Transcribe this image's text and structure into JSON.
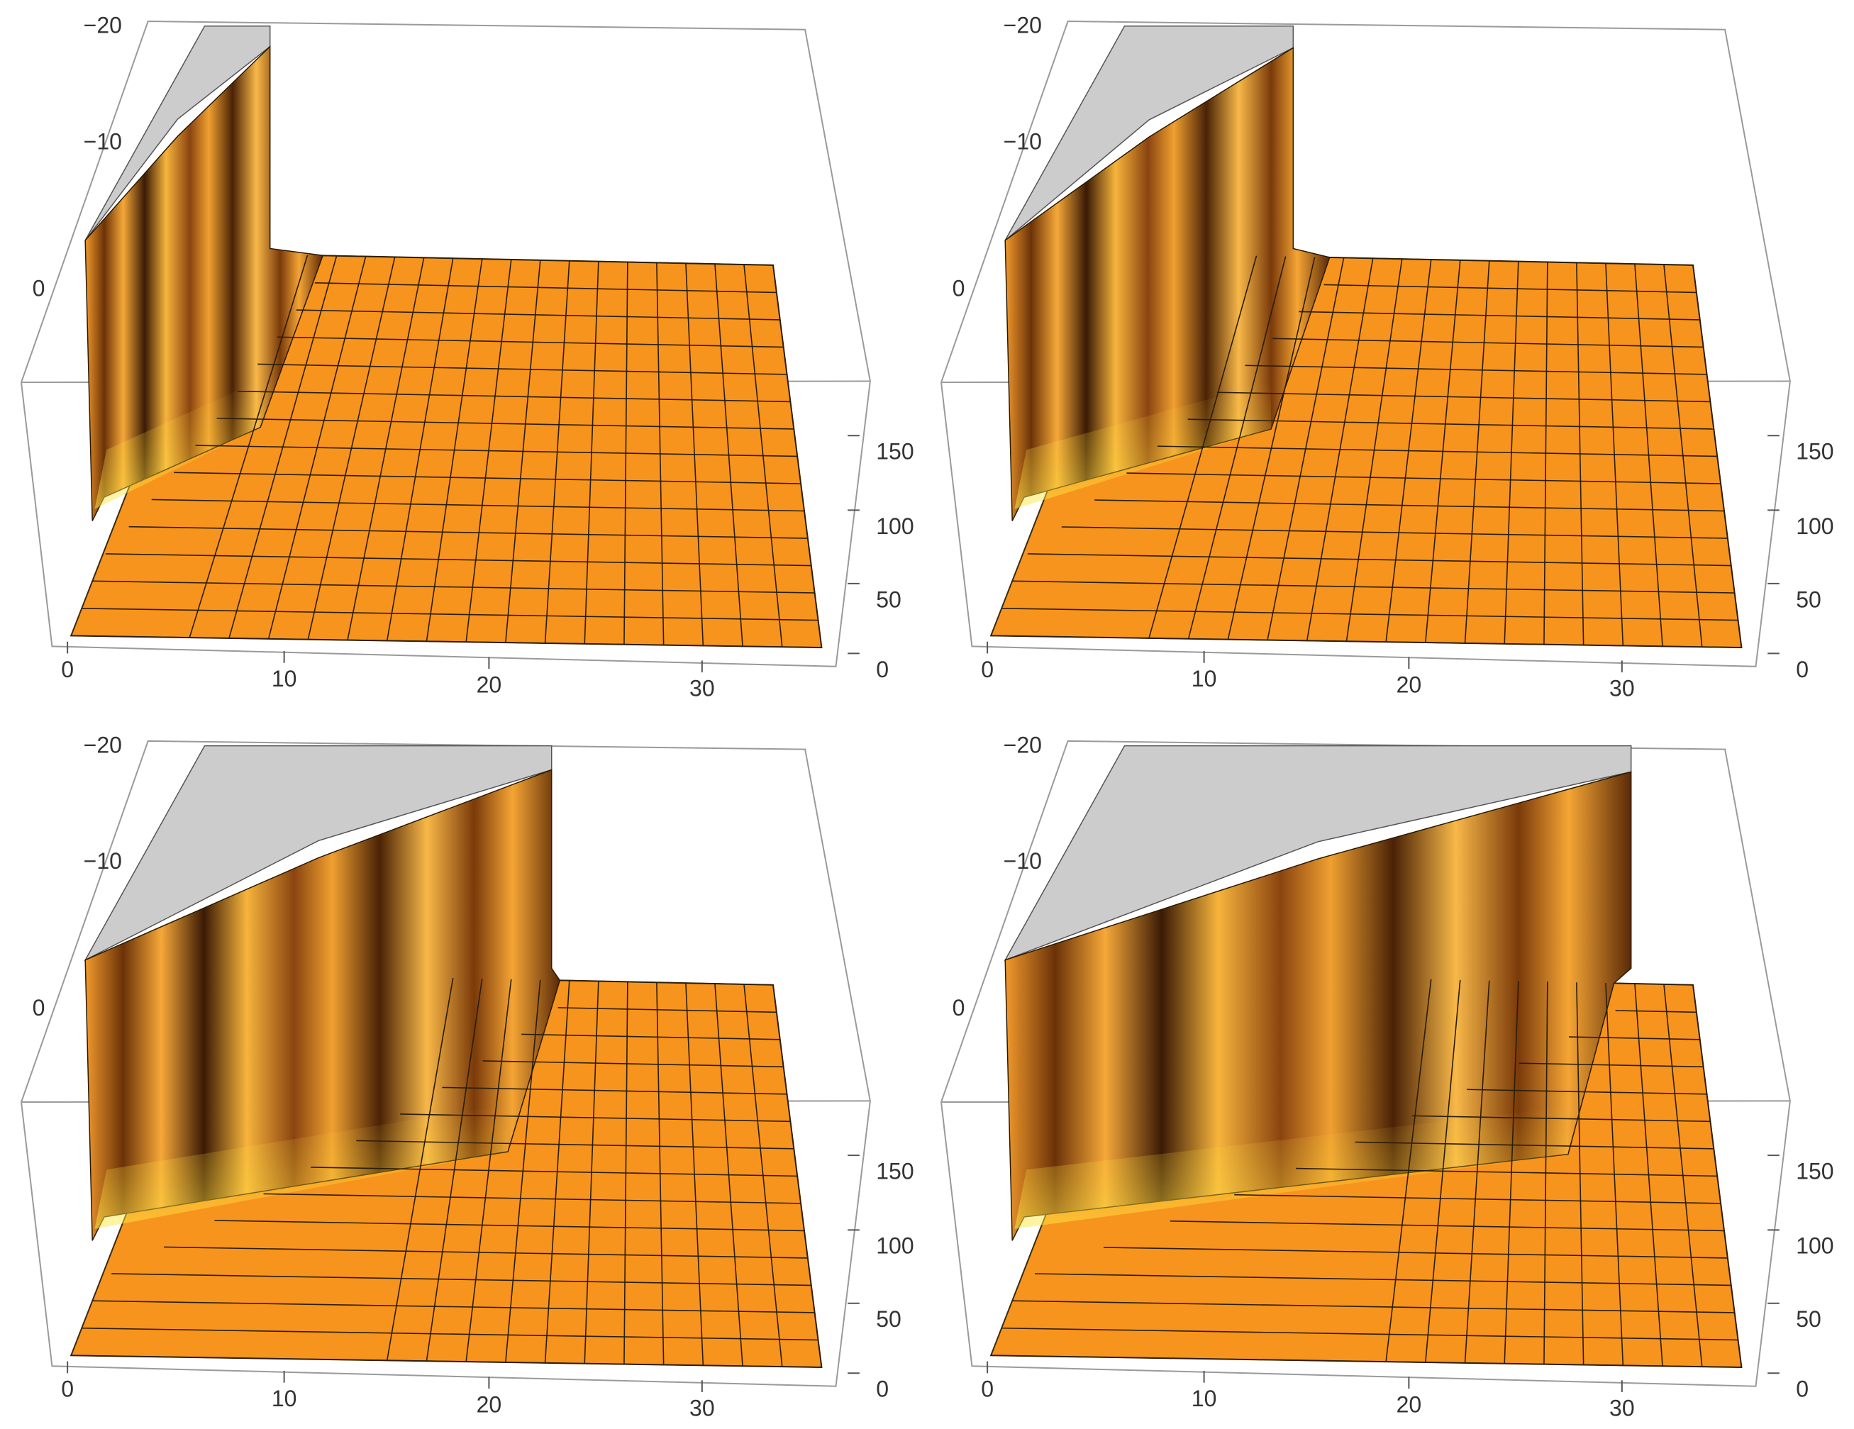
{
  "chart_data": [
    {
      "type": "surface3d",
      "panel": "top-left",
      "x_ticks": [
        "0",
        "10",
        "20",
        "30"
      ],
      "y_ticks": [
        "0",
        "50",
        "100",
        "150"
      ],
      "z_ticks": [
        "−20",
        "−10",
        "0"
      ],
      "xlim": [
        0,
        35
      ],
      "ylim": [
        0,
        190
      ],
      "zlim": [
        -20,
        10
      ],
      "grid_x_lines": 19,
      "grid_y_lines": 15,
      "surface_color": "#f7941d",
      "clipped_top_color": "#cccccc",
      "wall_extent_x": 6.5,
      "description_free": true
    },
    {
      "type": "surface3d",
      "panel": "top-right",
      "x_ticks": [
        "0",
        "10",
        "20",
        "30"
      ],
      "y_ticks": [
        "0",
        "50",
        "100",
        "150"
      ],
      "z_ticks": [
        "−20",
        "−10",
        "0"
      ],
      "xlim": [
        0,
        35
      ],
      "ylim": [
        0,
        190
      ],
      "zlim": [
        -20,
        10
      ],
      "surface_color": "#f7941d",
      "clipped_top_color": "#cccccc",
      "wall_extent_x": 12
    },
    {
      "type": "surface3d",
      "panel": "bottom-left",
      "x_ticks": [
        "0",
        "10",
        "20",
        "30"
      ],
      "y_ticks": [
        "0",
        "50",
        "100",
        "150"
      ],
      "z_ticks": [
        "−20",
        "−10",
        "0"
      ],
      "xlim": [
        0,
        35
      ],
      "ylim": [
        0,
        190
      ],
      "zlim": [
        -20,
        10
      ],
      "surface_color": "#f7941d",
      "clipped_top_color": "#cccccc",
      "wall_extent_x": 21.5
    },
    {
      "type": "surface3d",
      "panel": "bottom-right",
      "x_ticks": [
        "0",
        "10",
        "20",
        "30"
      ],
      "y_ticks": [
        "0",
        "50",
        "100",
        "150"
      ],
      "z_ticks": [
        "−20",
        "−10",
        "0"
      ],
      "xlim": [
        0,
        35
      ],
      "ylim": [
        0,
        190
      ],
      "zlim": [
        -20,
        10
      ],
      "surface_color": "#f7941d",
      "clipped_top_color": "#cccccc",
      "wall_extent_x": 30
    }
  ]
}
